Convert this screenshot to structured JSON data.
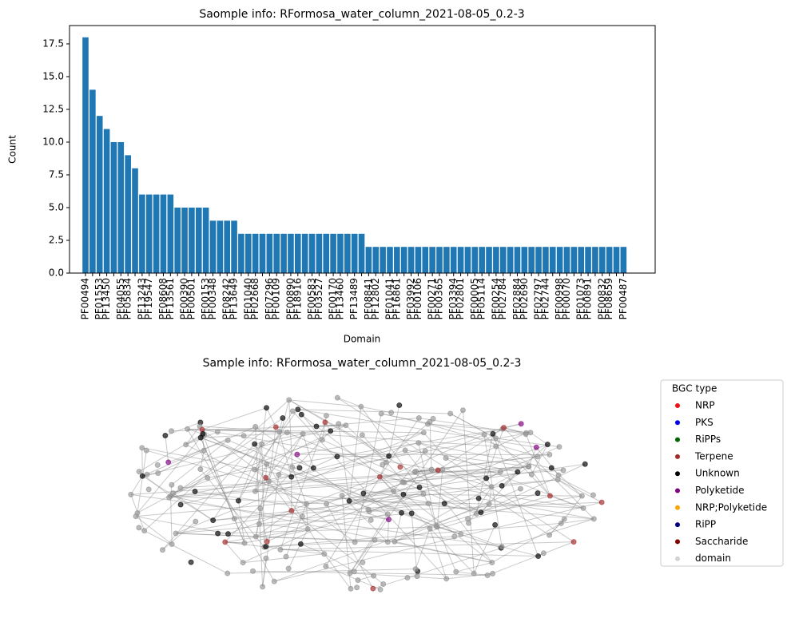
{
  "chart_data": [
    {
      "type": "bar",
      "title": "Saomple info: RFormosa_water_column_2021-08-05_0.2-3",
      "xlabel": "Domain",
      "ylabel": "Count",
      "color": "#1f77b4",
      "categories": [
        "PF00494",
        null,
        "PF01553",
        "PF13450",
        null,
        "PF04055",
        "PF05834",
        null,
        "PF13243",
        "PF19547",
        null,
        "PF08608",
        "PF13561",
        null,
        "PF00390",
        "PF00501",
        null,
        "PF00153",
        "PF00348",
        null,
        "PF08242",
        "PF13649",
        null,
        "PF01040",
        "PF02668",
        null,
        "PF07296",
        "PF00109",
        null,
        "PF00890",
        "PF18916",
        null,
        "PF00583",
        "PF03527",
        null,
        "PF00170",
        "PF13460",
        null,
        "PF13489",
        null,
        "PF08841",
        "PF12802",
        null,
        "PF01041",
        "PF16861",
        null,
        "PF03992",
        "PF00106",
        null,
        "PF00271",
        "PF00365",
        null,
        "PF03394",
        "PF02801",
        null,
        "PF00005",
        "PF05114",
        null,
        "PF00254",
        "PF02784",
        null,
        "PF02884",
        "PF02690",
        null,
        "PF02797",
        "PF02744",
        null,
        "PF00998",
        "PF00070",
        null,
        "PF01073",
        "PF00891",
        null,
        "PF00832",
        "PF08659",
        null,
        "PF00487"
      ],
      "values": [
        18,
        14,
        12,
        11,
        10,
        10,
        9,
        8,
        6,
        6,
        6,
        6,
        6,
        5,
        5,
        5,
        5,
        5,
        4,
        4,
        4,
        4,
        3,
        3,
        3,
        3,
        3,
        3,
        3,
        3,
        3,
        3,
        3,
        3,
        3,
        3,
        3,
        3,
        3,
        3,
        2,
        2,
        2,
        2,
        2,
        2,
        2,
        2,
        2,
        2,
        2,
        2,
        2,
        2,
        2,
        2,
        2,
        2,
        2,
        2,
        2,
        2,
        2,
        2,
        2,
        2,
        2,
        2,
        2,
        2,
        2,
        2,
        2,
        2,
        2,
        2,
        2
      ],
      "ylim": [
        0,
        18.9
      ],
      "yticks": [
        0.0,
        2.5,
        5.0,
        7.5,
        10.0,
        12.5,
        15.0,
        17.5
      ]
    },
    {
      "type": "network",
      "title": "Sample info: RFormosa_water_column_2021-08-05_0.2-3",
      "legend_title": "BGC type",
      "series": [
        {
          "name": "NRP",
          "color": "#ee1111"
        },
        {
          "name": "PKS",
          "color": "#0000ee"
        },
        {
          "name": "RiPPs",
          "color": "#006400"
        },
        {
          "name": "Terpene",
          "color": "#a52a2a"
        },
        {
          "name": "Unknown",
          "color": "#000000"
        },
        {
          "name": "Polyketide",
          "color": "#800080"
        },
        {
          "name": "NRP;Polyketide",
          "color": "#ffa500"
        },
        {
          "name": "RiPP",
          "color": "#000080"
        },
        {
          "name": "Saccharide",
          "color": "#800000"
        },
        {
          "name": "domain",
          "color": "#d3d3d3"
        }
      ]
    }
  ]
}
